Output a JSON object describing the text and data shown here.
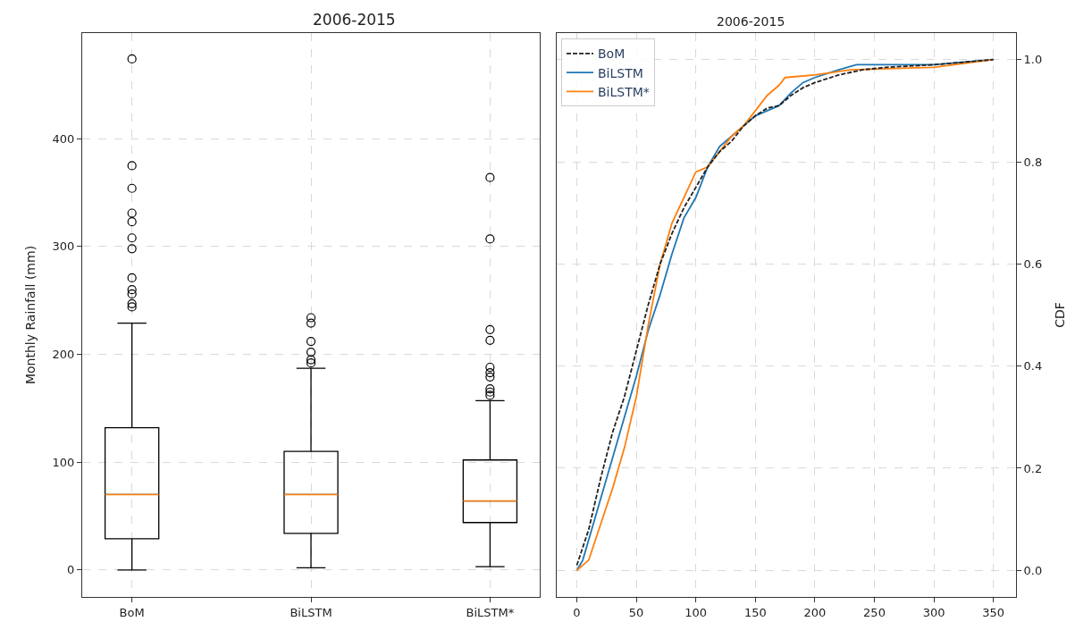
{
  "chart_data": [
    {
      "type": "box",
      "title": "2006-2015",
      "ylabel": "Monthly Rainfall (mm)",
      "categories": [
        "BoM",
        "BiLSTM",
        "BiLSTM*"
      ],
      "ylim": [
        -25,
        498
      ],
      "yticks": [
        0,
        100,
        200,
        300,
        400
      ],
      "grid": true,
      "boxes": [
        {
          "low": 0,
          "q1": 29,
          "median": 70,
          "q3": 132,
          "high": 229,
          "outliers": [
            474,
            375,
            354,
            331,
            323,
            308,
            298,
            271,
            260,
            256,
            247,
            244
          ]
        },
        {
          "low": 2,
          "q1": 34,
          "median": 70,
          "q3": 110,
          "high": 187,
          "outliers": [
            234,
            229,
            212,
            202,
            195,
            192
          ]
        },
        {
          "low": 3,
          "q1": 44,
          "median": 64,
          "q3": 102,
          "high": 157,
          "outliers": [
            364,
            307,
            223,
            213,
            188,
            183,
            179,
            168,
            165,
            162
          ]
        }
      ]
    },
    {
      "type": "line",
      "title": "2006-2015",
      "ylabel": "CDF",
      "xlim": [
        -17,
        369
      ],
      "xticks": [
        0,
        50,
        100,
        150,
        200,
        250,
        300,
        350
      ],
      "ylim": [
        -0.052,
        1.052
      ],
      "yticks": [
        {
          "value": 0,
          "label": "0.0"
        },
        0.2,
        0.4,
        0.6,
        0.8,
        {
          "value": 1,
          "label": "1.0"
        }
      ],
      "grid": true,
      "legend": "top left",
      "series": [
        {
          "name": "BoM",
          "color": "#222222",
          "line_style": "dashed",
          "x": [
            0,
            10,
            20,
            30,
            40,
            50,
            60,
            70,
            80,
            90,
            100,
            110,
            120,
            130,
            140,
            150,
            160,
            170,
            180,
            190,
            200,
            220,
            240,
            260,
            300,
            350
          ],
          "values": [
            0.01,
            0.08,
            0.18,
            0.27,
            0.34,
            0.43,
            0.52,
            0.6,
            0.66,
            0.71,
            0.75,
            0.79,
            0.82,
            0.84,
            0.87,
            0.89,
            0.905,
            0.91,
            0.93,
            0.945,
            0.955,
            0.97,
            0.98,
            0.985,
            0.99,
            1.0
          ]
        },
        {
          "name": "BiLSTM",
          "color": "#1f77b4",
          "line_style": "solid",
          "x": [
            0,
            5,
            10,
            20,
            30,
            40,
            50,
            60,
            70,
            80,
            90,
            100,
            110,
            120,
            130,
            140,
            150,
            160,
            170,
            180,
            190,
            200,
            220,
            235,
            300,
            350
          ],
          "values": [
            0,
            0.02,
            0.06,
            0.14,
            0.22,
            0.3,
            0.38,
            0.47,
            0.54,
            0.62,
            0.69,
            0.73,
            0.79,
            0.83,
            0.85,
            0.87,
            0.89,
            0.9,
            0.91,
            0.935,
            0.955,
            0.965,
            0.98,
            0.99,
            0.99,
            1.0
          ]
        },
        {
          "name": "BiLSTM*",
          "color": "#ff7f0e",
          "line_style": "solid",
          "x": [
            0,
            10,
            20,
            30,
            40,
            50,
            60,
            70,
            80,
            90,
            100,
            110,
            120,
            130,
            140,
            150,
            160,
            170,
            175,
            200,
            230,
            300,
            350
          ],
          "values": [
            0,
            0.02,
            0.09,
            0.16,
            0.24,
            0.34,
            0.48,
            0.6,
            0.68,
            0.73,
            0.78,
            0.79,
            0.82,
            0.85,
            0.87,
            0.9,
            0.93,
            0.95,
            0.965,
            0.97,
            0.98,
            0.985,
            1.0
          ]
        }
      ]
    }
  ]
}
